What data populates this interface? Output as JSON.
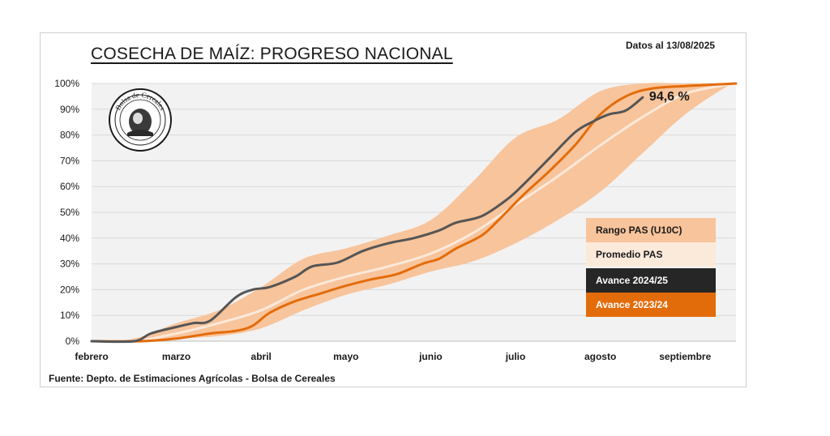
{
  "header": {
    "title": "COSECHA DE MAÍZ: PROGRESO NACIONAL",
    "date": "Datos al 13/08/2025"
  },
  "footer": {
    "source": "Fuente: Depto. de Estimaciones Agrícolas - Bolsa de Cereales"
  },
  "logo": {
    "text": "Bolsa de Cereales",
    "icon": "bolsa-de-cereales-seal"
  },
  "colors": {
    "range": "#f8c49b",
    "average": "#fbe9da",
    "current": "#555555",
    "previous": "#e36c0a",
    "grid": "#d9d9d9",
    "plot_bg": "#f2f2f2"
  },
  "chart_data": {
    "type": "line",
    "title": "COSECHA DE MAÍZ: PROGRESO NACIONAL",
    "xlabel": "",
    "ylabel": "",
    "x_unit": "months since start of February",
    "xlim": [
      0,
      7.6
    ],
    "ylim": [
      0,
      100
    ],
    "y_ticks": [
      0,
      10,
      20,
      30,
      40,
      50,
      60,
      70,
      80,
      90,
      100
    ],
    "y_tick_labels": [
      "0%",
      "10%",
      "20%",
      "30%",
      "40%",
      "50%",
      "60%",
      "70%",
      "80%",
      "90%",
      "100%"
    ],
    "x_ticks": [
      0,
      1,
      2,
      3,
      4,
      5,
      6,
      7
    ],
    "x_tick_labels": [
      "febrero",
      "marzo",
      "abril",
      "mayo",
      "junio",
      "julio",
      "agosto",
      "septiembre"
    ],
    "grid": true,
    "legend_position": "right",
    "series": [
      {
        "name": "Rango PAS (U10C)",
        "kind": "band",
        "x": [
          0,
          0.5,
          1,
          1.5,
          2,
          2.5,
          3,
          3.5,
          4,
          4.5,
          5,
          5.5,
          6,
          6.5,
          7,
          7.5,
          7.6
        ],
        "lower": [
          0,
          0,
          1,
          2,
          5,
          12,
          18,
          22,
          27,
          31,
          38,
          47,
          58,
          73,
          88,
          99,
          100
        ],
        "upper": [
          0,
          1,
          7,
          12,
          21,
          32,
          36,
          41,
          47,
          62,
          79,
          86,
          97,
          100,
          100,
          100,
          100
        ]
      },
      {
        "name": "Promedio PAS",
        "kind": "line",
        "x": [
          0,
          0.5,
          1,
          1.5,
          2,
          2.5,
          3,
          3.5,
          4,
          4.5,
          5,
          5.5,
          6,
          6.5,
          7,
          7.5,
          7.6
        ],
        "values": [
          0,
          0,
          3,
          7,
          12,
          20,
          25,
          29,
          34,
          42,
          53,
          64,
          76,
          87,
          96,
          99.5,
          100
        ]
      },
      {
        "name": "Avance 2024/25",
        "kind": "line",
        "x": [
          0,
          0.5,
          0.7,
          1,
          1.2,
          1.4,
          1.7,
          1.9,
          2.1,
          2.4,
          2.6,
          2.9,
          3.2,
          3.5,
          3.8,
          4.1,
          4.3,
          4.6,
          4.9,
          5.1,
          5.4,
          5.7,
          5.9,
          6.1,
          6.3,
          6.5
        ],
        "values": [
          0,
          0,
          3,
          5.5,
          7,
          8,
          17,
          20,
          21,
          25,
          29,
          30.5,
          35,
          38,
          40,
          43,
          46,
          48.5,
          55,
          61,
          71,
          81,
          85,
          88,
          89.5,
          94.6
        ]
      },
      {
        "name": "Avance 2023/24",
        "kind": "line",
        "x": [
          0,
          0.6,
          1,
          1.4,
          1.7,
          1.9,
          2.1,
          2.4,
          2.7,
          3,
          3.3,
          3.6,
          3.9,
          4.1,
          4.3,
          4.6,
          4.8,
          5.1,
          5.4,
          5.7,
          6,
          6.3,
          6.6,
          7,
          7.3,
          7.6
        ],
        "values": [
          0,
          0,
          1,
          3,
          4,
          6,
          11,
          15.5,
          18.5,
          21.5,
          24,
          26,
          30,
          32,
          36,
          41,
          47,
          57,
          66,
          76,
          88,
          95,
          98,
          99,
          99.5,
          100
        ]
      }
    ],
    "annotations": [
      {
        "text": "94,6 %",
        "x": 6.5,
        "y": 94.6,
        "series": "Avance 2024/25"
      }
    ],
    "legend": [
      {
        "label": "Rango PAS (U10C)",
        "color": "#f8c49b",
        "text_color": "#1a1a1a"
      },
      {
        "label": "Promedio PAS",
        "color": "#fbe9da",
        "text_color": "#1a1a1a"
      },
      {
        "label": "Avance 2024/25",
        "color": "#262626",
        "text_color": "#ffffff"
      },
      {
        "label": "Avance 2023/24",
        "color": "#e36c0a",
        "text_color": "#ffffff"
      }
    ]
  }
}
